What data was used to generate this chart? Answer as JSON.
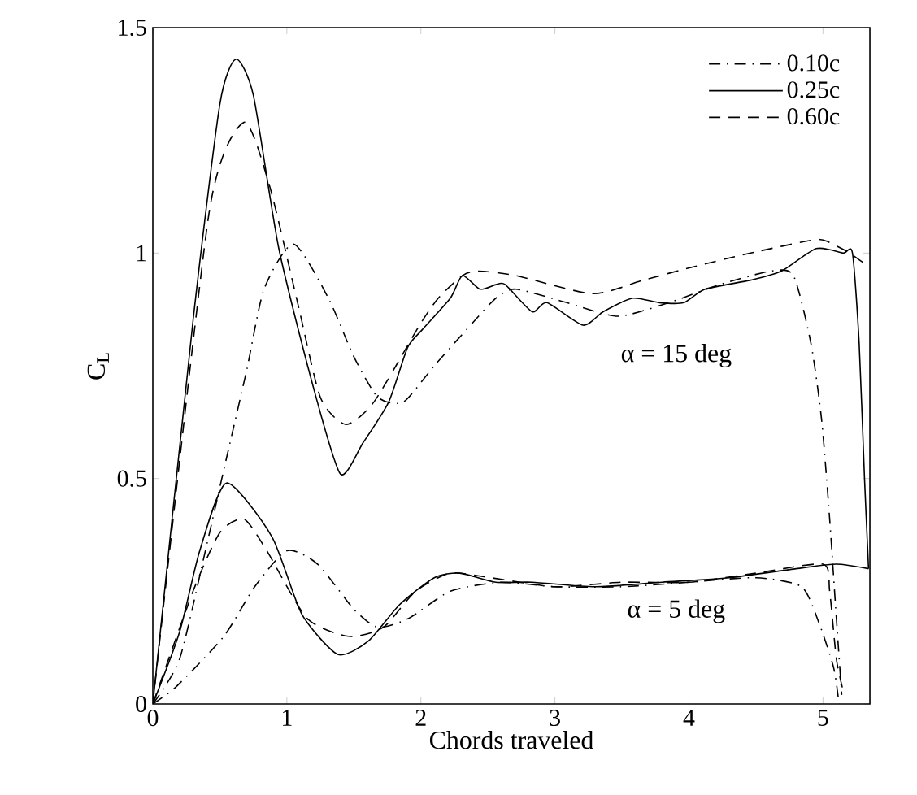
{
  "chart_data": {
    "type": "line",
    "xlabel": "Chords traveled",
    "ylabel": "C$_{L}$",
    "xlim": [
      0,
      5.35
    ],
    "ylim": [
      0,
      1.5
    ],
    "xticks": [
      0,
      1,
      2,
      3,
      4,
      5
    ],
    "yticks": [
      0,
      0.5,
      1,
      1.5
    ],
    "grid": false,
    "legend": "top right",
    "marker": "none",
    "series": [
      {
        "name": "0.10c",
        "color": "#000000",
        "line_style": "dashdot",
        "x": [
          0,
          0.2,
          0.4,
          0.53,
          0.7,
          0.83,
          1.05,
          1.31,
          1.5,
          1.68,
          1.87,
          2.1,
          2.37,
          2.56,
          2.71,
          3.09,
          3.47,
          3.85,
          4.23,
          4.61,
          4.78,
          4.91,
          4.99,
          5.05,
          5.1,
          5.14
        ],
        "values": [
          0,
          0.1,
          0.35,
          0.52,
          0.74,
          0.92,
          1.02,
          0.9,
          0.77,
          0.68,
          0.67,
          0.75,
          0.84,
          0.9,
          0.92,
          0.89,
          0.86,
          0.89,
          0.93,
          0.96,
          0.95,
          0.8,
          0.63,
          0.41,
          0.19,
          0.02
        ]
      },
      {
        "name": "0.25c",
        "color": "#000000",
        "line_style": "solid",
        "x": [
          0,
          0.3,
          0.5,
          0.62,
          0.75,
          0.94,
          1.2,
          1.4,
          1.57,
          1.76,
          1.9,
          2.01,
          2.22,
          2.31,
          2.44,
          2.56,
          2.63,
          2.83,
          2.94,
          3.21,
          3.36,
          3.58,
          3.78,
          3.96,
          4.12,
          4.46,
          4.69,
          4.95,
          5.15,
          5.22,
          5.27,
          5.31,
          5.34
        ],
        "values": [
          0,
          0.85,
          1.33,
          1.43,
          1.35,
          1.01,
          0.7,
          0.51,
          0.58,
          0.67,
          0.79,
          0.83,
          0.9,
          0.95,
          0.92,
          0.93,
          0.93,
          0.87,
          0.89,
          0.84,
          0.87,
          0.9,
          0.89,
          0.89,
          0.92,
          0.94,
          0.96,
          1.01,
          1.0,
          1.0,
          0.8,
          0.5,
          0.3
        ]
      },
      {
        "name": "0.60c",
        "color": "#000000",
        "line_style": "dashed",
        "x": [
          0,
          0.42,
          0.68,
          0.87,
          1.08,
          1.25,
          1.44,
          1.65,
          1.99,
          2.13,
          2.31,
          2.43,
          2.71,
          3.28,
          3.66,
          4.04,
          4.46,
          4.95,
          5.07,
          5.2,
          5.34
        ],
        "values": [
          0,
          1.09,
          1.29,
          1.15,
          0.89,
          0.68,
          0.62,
          0.67,
          0.84,
          0.9,
          0.95,
          0.96,
          0.95,
          0.91,
          0.94,
          0.97,
          1.0,
          1.03,
          1.02,
          1.0,
          0.97
        ]
      },
      {
        "color": "#000000",
        "line_style": "dashdot",
        "x": [
          0,
          0.18,
          0.53,
          0.76,
          1.0,
          1.23,
          1.5,
          1.68,
          1.91,
          2.22,
          2.6,
          3.0,
          3.5,
          4.0,
          4.5,
          4.84,
          4.97,
          5.08,
          5.12
        ],
        "values": [
          0,
          0.04,
          0.15,
          0.26,
          0.34,
          0.31,
          0.21,
          0.17,
          0.19,
          0.25,
          0.27,
          0.26,
          0.26,
          0.27,
          0.28,
          0.26,
          0.18,
          0.08,
          0
        ]
      },
      {
        "color": "#000000",
        "line_style": "solid",
        "x": [
          0,
          0.2,
          0.35,
          0.55,
          0.89,
          1.11,
          1.38,
          1.61,
          1.84,
          2.1,
          2.29,
          2.56,
          2.83,
          3.3,
          3.8,
          4.3,
          4.8,
          5.1,
          5.34
        ],
        "values": [
          0,
          0.16,
          0.34,
          0.49,
          0.37,
          0.2,
          0.11,
          0.14,
          0.22,
          0.28,
          0.29,
          0.27,
          0.27,
          0.26,
          0.27,
          0.28,
          0.3,
          0.31,
          0.3
        ]
      },
      {
        "color": "#000000",
        "line_style": "dashed",
        "x": [
          0,
          0.3,
          0.5,
          0.68,
          0.85,
          1.15,
          1.46,
          1.72,
          1.96,
          2.22,
          2.52,
          3.0,
          3.5,
          4.0,
          4.5,
          5.0,
          5.05,
          5.1,
          5.15
        ],
        "values": [
          0,
          0.25,
          0.38,
          0.41,
          0.34,
          0.19,
          0.15,
          0.17,
          0.25,
          0.29,
          0.28,
          0.26,
          0.27,
          0.27,
          0.29,
          0.31,
          0.25,
          0.1,
          0.03
        ]
      }
    ],
    "annotations": [
      "α = 15 deg",
      "α = 5 deg"
    ]
  }
}
